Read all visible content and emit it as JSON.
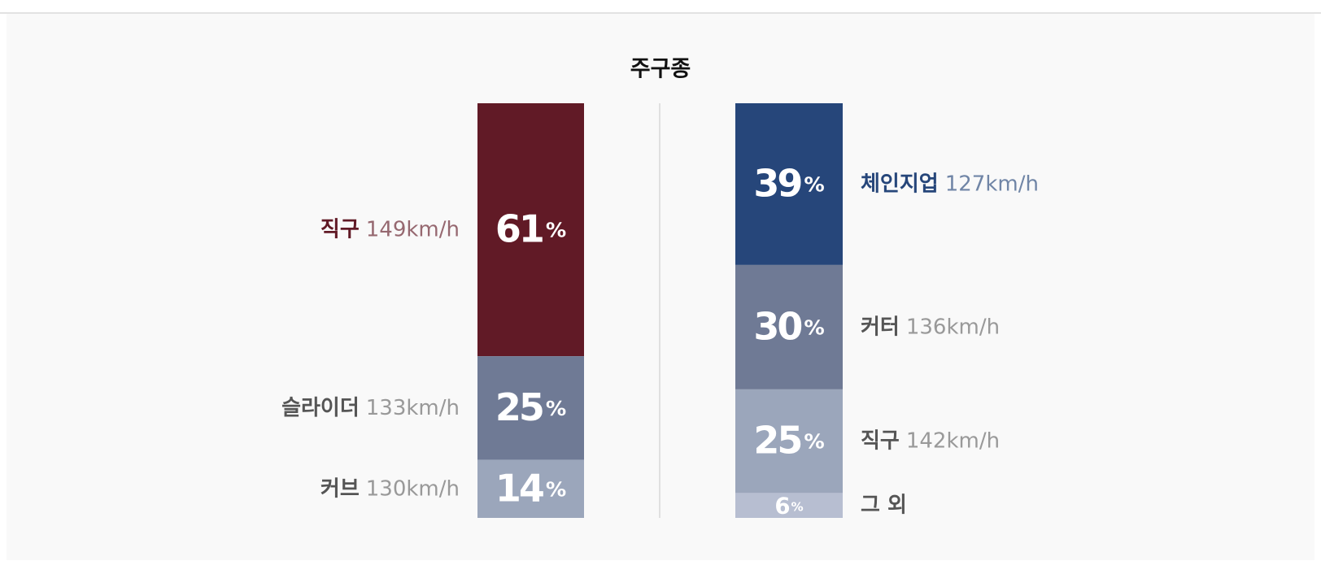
{
  "chart_data": {
    "type": "stacked-bar",
    "title": "주구종",
    "unit": "%",
    "stacks": [
      {
        "series": [
          {
            "name": "직구",
            "speed": "149km/h",
            "value": 61,
            "color": "#611a26"
          },
          {
            "name": "슬라이더",
            "speed": "133km/h",
            "value": 25,
            "color": "#6f7a95"
          },
          {
            "name": "커브",
            "speed": "130km/h",
            "value": 14,
            "color": "#9ba6bb"
          }
        ]
      },
      {
        "series": [
          {
            "name": "체인지업",
            "speed": "127km/h",
            "value": 39,
            "color": "#26467a"
          },
          {
            "name": "커터",
            "speed": "136km/h",
            "value": 30,
            "color": "#6f7a95"
          },
          {
            "name": "직구",
            "speed": "142km/h",
            "value": 25,
            "color": "#9ba6bb"
          },
          {
            "name": "그 외",
            "value": 6,
            "color": "#b7bed1"
          }
        ]
      }
    ]
  }
}
